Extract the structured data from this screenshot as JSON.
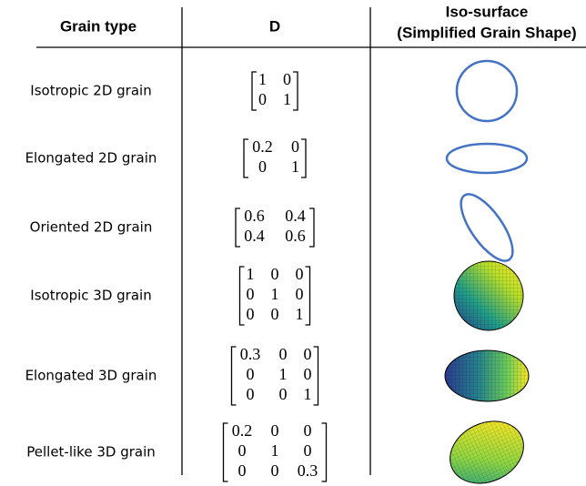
{
  "header": {
    "grain_type": "Grain type",
    "d": "D",
    "shape": [
      "Iso-surface",
      "(Simplified Grain Shape)"
    ]
  },
  "rows": [
    {
      "grain_type": "Isotropic 2D grain",
      "matrix": [
        [
          "1",
          "0"
        ],
        [
          "0",
          "1"
        ]
      ]
    },
    {
      "grain_type": "Elongated 2D grain",
      "matrix": [
        [
          "0.2",
          "0"
        ],
        [
          "0",
          "1"
        ]
      ]
    },
    {
      "grain_type": "Oriented 2D grain",
      "matrix": [
        [
          "0.6",
          "0.4"
        ],
        [
          "0.4",
          "0.6"
        ]
      ]
    },
    {
      "grain_type": "Isotropic 3D grain",
      "matrix": [
        [
          "1",
          "0",
          "0"
        ],
        [
          "0",
          "1",
          "0"
        ],
        [
          "0",
          "0",
          "1"
        ]
      ]
    },
    {
      "grain_type": "Elongated 3D grain",
      "matrix": [
        [
          "0.3",
          "0",
          "0"
        ],
        [
          "0",
          "1",
          "0"
        ],
        [
          "0",
          "0",
          "1"
        ]
      ]
    },
    {
      "grain_type": "Pellet-like 3D grain",
      "matrix": [
        [
          "0.2",
          "0",
          "0"
        ],
        [
          "0",
          "1",
          "0"
        ],
        [
          "0",
          "0",
          "0.3"
        ]
      ]
    }
  ]
}
